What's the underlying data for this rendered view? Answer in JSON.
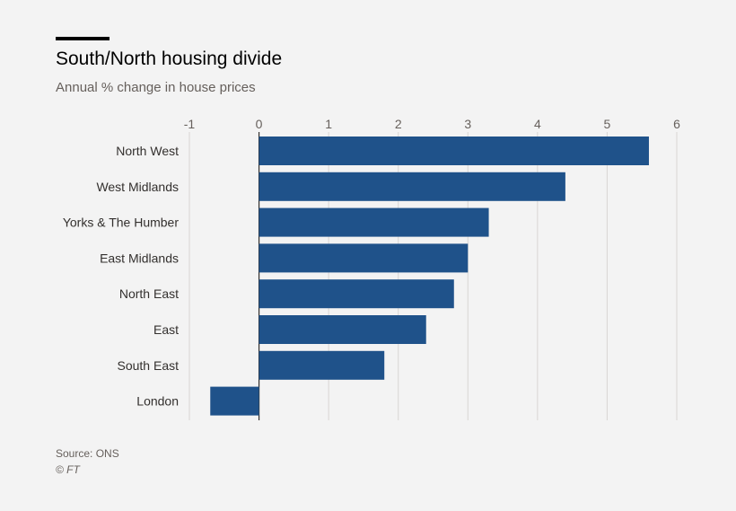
{
  "colors": {
    "bar": "#1f528a",
    "grid": "#d8d6d3",
    "zero_line": "#33302e",
    "text": "#33302e",
    "muted": "#66605c",
    "background": "#f3f3f3"
  },
  "header": {
    "title": "South/North housing divide",
    "subtitle": "Annual % change in house prices"
  },
  "footer": {
    "source": "Source: ONS",
    "credit": "© FT"
  },
  "chart_data": {
    "type": "bar",
    "orientation": "horizontal",
    "title": "South/North housing divide",
    "subtitle": "Annual % change in house prices",
    "categories": [
      "North West",
      "West Midlands",
      "Yorks & The Humber",
      "East Midlands",
      "North East",
      "East",
      "South East",
      "London"
    ],
    "values": [
      5.6,
      4.4,
      3.3,
      3.0,
      2.8,
      2.4,
      1.8,
      -0.7
    ],
    "xlim": [
      -1,
      6
    ],
    "xticks": [
      -1,
      0,
      1,
      2,
      3,
      4,
      5,
      6
    ],
    "xtick_labels": [
      "-1",
      "0",
      "1",
      "2",
      "3",
      "4",
      "5",
      "6"
    ],
    "axis_position": "top",
    "grid": true,
    "legend": "none"
  }
}
